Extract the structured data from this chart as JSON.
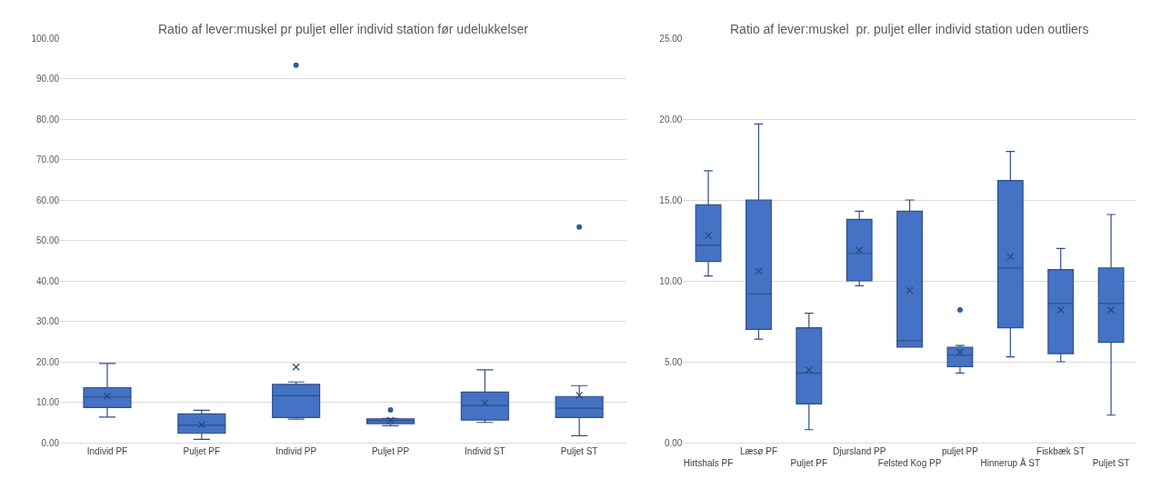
{
  "chart_data": [
    {
      "type": "box",
      "title": "Ratio af lever:muskel pr puljet eller individ station før udelukkelser",
      "categories": [
        "Individ PF",
        "Puljet PF",
        "Individ PP",
        "Puljet PP",
        "Individ ST",
        "Puljet ST"
      ],
      "color": "#4472c4",
      "ylim": [
        0,
        100
      ],
      "yticks": [
        {
          "value": 0,
          "label": "0.00"
        },
        {
          "value": 10,
          "label": "10.00"
        },
        {
          "value": 20,
          "label": "20.00"
        },
        {
          "value": 30,
          "label": "30.00"
        },
        {
          "value": 40,
          "label": "40.00"
        },
        {
          "value": 50,
          "label": "50.00"
        },
        {
          "value": 60,
          "label": "60.00"
        },
        {
          "value": 70,
          "label": "70.00"
        },
        {
          "value": 80,
          "label": "80.00"
        },
        {
          "value": 90,
          "label": "90.00"
        },
        {
          "value": 100,
          "label": "100.00"
        }
      ],
      "grid": "y",
      "boxes": [
        {
          "low": 6.3,
          "q1": 8.7,
          "median": 11.3,
          "q3": 13.6,
          "high": 19.6,
          "mean": 11.5
        },
        {
          "low": 0.8,
          "q1": 2.3,
          "median": 4.3,
          "q3": 7.1,
          "high": 8.0,
          "mean": 4.4
        },
        {
          "low": 5.8,
          "q1": 6.2,
          "median": 11.6,
          "q3": 14.4,
          "high": 15.0,
          "mean": 18.7,
          "outliers": [
            93.3
          ]
        },
        {
          "low": 4.2,
          "q1": 4.7,
          "median": 5.4,
          "q3": 5.9,
          "high": 6.0,
          "mean": 5.5,
          "outliers": [
            8.1
          ]
        },
        {
          "low": 5.0,
          "q1": 5.6,
          "median": 9.2,
          "q3": 12.5,
          "high": 18.0,
          "mean": 9.8
        },
        {
          "low": 1.7,
          "q1": 6.2,
          "median": 8.5,
          "q3": 11.4,
          "high": 14.1,
          "mean": 11.7,
          "outliers": [
            53.3
          ]
        }
      ]
    },
    {
      "type": "box",
      "title": "Ratio af lever:muskel  pr. puljet eller individ station uden outliers",
      "categories": [
        "Hirtshals PF",
        "Læsø PF",
        "Puljet PF",
        "Djursland PP",
        "Felsted Kog PP",
        "puljet PP",
        "Hinnerup Å ST",
        "Fiskbæk ST",
        "Puljet ST"
      ],
      "color": "#4472c4",
      "ylim": [
        0,
        25
      ],
      "yticks": [
        {
          "value": 0,
          "label": "0.00"
        },
        {
          "value": 5,
          "label": "5.00"
        },
        {
          "value": 10,
          "label": "10.00"
        },
        {
          "value": 15,
          "label": "15.00"
        },
        {
          "value": 20,
          "label": "20.00"
        },
        {
          "value": 25,
          "label": "25.00"
        }
      ],
      "grid": "y",
      "boxes": [
        {
          "low": 10.3,
          "q1": 11.2,
          "median": 12.2,
          "q3": 14.7,
          "high": 16.8,
          "mean": 12.8
        },
        {
          "low": 6.4,
          "q1": 7.0,
          "median": 9.2,
          "q3": 15.0,
          "high": 19.7,
          "mean": 10.6
        },
        {
          "low": 0.8,
          "q1": 2.4,
          "median": 4.3,
          "q3": 7.1,
          "high": 8.0,
          "mean": 4.5
        },
        {
          "low": 9.7,
          "q1": 10.0,
          "median": 11.7,
          "q3": 13.8,
          "high": 14.3,
          "mean": 11.9
        },
        {
          "low": 5.9,
          "q1": 5.9,
          "median": 6.3,
          "q3": 14.3,
          "high": 15.0,
          "mean": 9.4
        },
        {
          "low": 4.3,
          "q1": 4.7,
          "median": 5.4,
          "q3": 5.9,
          "high": 6.0,
          "mean": 5.6,
          "outliers": [
            8.2
          ]
        },
        {
          "low": 5.3,
          "q1": 7.1,
          "median": 10.8,
          "q3": 16.2,
          "high": 18.0,
          "mean": 11.5
        },
        {
          "low": 5.0,
          "q1": 5.5,
          "median": 8.6,
          "q3": 10.7,
          "high": 12.0,
          "mean": 8.2
        },
        {
          "low": 1.7,
          "q1": 6.2,
          "median": 8.6,
          "q3": 10.8,
          "high": 14.1,
          "mean": 8.2
        }
      ]
    }
  ]
}
